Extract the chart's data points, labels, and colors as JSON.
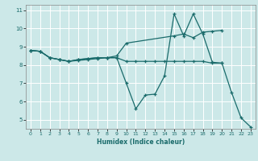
{
  "xlabel": "Humidex (Indice chaleur)",
  "bg_color": "#cce8e8",
  "grid_color": "#ffffff",
  "line_color": "#1a6b6b",
  "xlim": [
    -0.5,
    23.5
  ],
  "ylim": [
    4.5,
    11.3
  ],
  "yticks": [
    5,
    6,
    7,
    8,
    9,
    10,
    11
  ],
  "xticks": [
    0,
    1,
    2,
    3,
    4,
    5,
    6,
    7,
    8,
    9,
    10,
    11,
    12,
    13,
    14,
    15,
    16,
    17,
    18,
    19,
    20,
    21,
    22,
    23
  ],
  "line1_x": [
    0,
    1,
    2,
    3,
    4,
    5,
    6,
    7,
    8,
    9,
    10,
    11,
    12,
    13,
    14,
    15,
    16,
    17,
    18,
    19,
    20
  ],
  "line1_y": [
    8.8,
    8.75,
    8.4,
    8.3,
    8.2,
    8.3,
    8.35,
    8.4,
    8.4,
    8.4,
    8.2,
    8.2,
    8.2,
    8.2,
    8.2,
    8.2,
    8.2,
    8.2,
    8.2,
    8.1,
    8.1
  ],
  "line2_x": [
    0,
    1,
    2,
    3,
    4,
    5,
    6,
    7,
    8,
    9,
    10,
    15,
    16,
    17,
    18,
    19,
    20
  ],
  "line2_y": [
    8.8,
    8.75,
    8.4,
    8.3,
    8.2,
    8.3,
    8.35,
    8.4,
    8.4,
    8.5,
    9.2,
    9.6,
    9.7,
    9.5,
    9.8,
    9.85,
    9.9
  ],
  "line3_x": [
    0,
    1,
    2,
    3,
    4,
    5,
    6,
    7,
    8,
    9,
    10,
    11,
    12,
    13,
    14,
    15,
    16,
    17,
    18,
    19,
    20,
    21,
    22,
    23
  ],
  "line3_y": [
    8.8,
    8.75,
    8.4,
    8.3,
    8.2,
    8.25,
    8.3,
    8.35,
    8.4,
    8.4,
    7.0,
    5.6,
    6.35,
    6.4,
    7.4,
    10.8,
    9.6,
    10.8,
    9.7,
    8.15,
    8.1,
    6.5,
    5.1,
    4.6
  ]
}
